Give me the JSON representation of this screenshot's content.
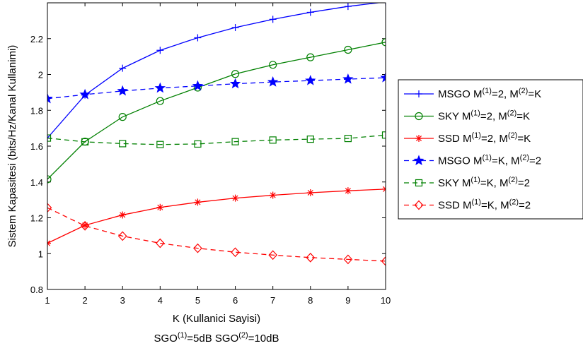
{
  "chart_data": {
    "type": "line",
    "xlabel": "K (Kullanici Sayisi)",
    "subtitle": {
      "parts": [
        {
          "text": "SGO"
        },
        {
          "text": "(1)",
          "sup": true
        },
        {
          "text": "=5dB SGO"
        },
        {
          "text": "(2)",
          "sup": true
        },
        {
          "text": "=10dB"
        }
      ]
    },
    "ylabel": "Sistem Kapasitesi (bits/Hz/Kanal Kullanimi)",
    "x": [
      1,
      2,
      3,
      4,
      5,
      6,
      7,
      8,
      9,
      10
    ],
    "xlim": [
      1,
      10
    ],
    "ylim": [
      0.8,
      2.4
    ],
    "xticks": [
      1,
      2,
      3,
      4,
      5,
      6,
      7,
      8,
      9,
      10
    ],
    "yticks": [
      0.8,
      1,
      1.2,
      1.4,
      1.6,
      1.8,
      2,
      2.2
    ],
    "ytick_labels": [
      "0.8",
      "1",
      "1.2",
      "1.4",
      "1.6",
      "1.8",
      "2",
      "2.2"
    ],
    "grid": false,
    "legend_position": "outside-right",
    "series": [
      {
        "name": "MSGO M(1)=2, M(2)=K",
        "legend_parts": [
          {
            "text": "MSGO M"
          },
          {
            "text": "(1)",
            "sup": true
          },
          {
            "text": "=2, M"
          },
          {
            "text": "(2)",
            "sup": true
          },
          {
            "text": "=K"
          }
        ],
        "color": "#0000FF",
        "linestyle": "solid",
        "marker": "plus",
        "values": [
          1.645,
          1.885,
          2.035,
          2.135,
          2.205,
          2.262,
          2.308,
          2.347,
          2.38,
          2.405
        ]
      },
      {
        "name": "SKY M(1)=2, M(2)=K",
        "legend_parts": [
          {
            "text": "SKY M"
          },
          {
            "text": "(1)",
            "sup": true
          },
          {
            "text": "=2, M"
          },
          {
            "text": "(2)",
            "sup": true
          },
          {
            "text": "=K"
          }
        ],
        "color": "#008000",
        "linestyle": "solid",
        "marker": "circle",
        "values": [
          1.415,
          1.625,
          1.763,
          1.852,
          1.927,
          2.003,
          2.054,
          2.096,
          2.138,
          2.18
        ]
      },
      {
        "name": "SSD M(1)=2, M(2)=K",
        "legend_parts": [
          {
            "text": "SSD M"
          },
          {
            "text": "(1)",
            "sup": true
          },
          {
            "text": "=2, M"
          },
          {
            "text": "(2)",
            "sup": true
          },
          {
            "text": "=K"
          }
        ],
        "color": "#FF0000",
        "linestyle": "solid",
        "marker": "asterisk",
        "values": [
          1.058,
          1.158,
          1.216,
          1.258,
          1.287,
          1.31,
          1.326,
          1.34,
          1.351,
          1.36
        ]
      },
      {
        "name": "MSGO M(1)=K, M(2)=2",
        "legend_parts": [
          {
            "text": "MSGO M"
          },
          {
            "text": "(1)",
            "sup": true
          },
          {
            "text": "=K, M"
          },
          {
            "text": "(2)",
            "sup": true
          },
          {
            "text": "=2"
          }
        ],
        "color": "#0000FF",
        "linestyle": "dashed",
        "marker": "star",
        "values": [
          1.865,
          1.888,
          1.908,
          1.924,
          1.936,
          1.948,
          1.958,
          1.966,
          1.974,
          1.982
        ]
      },
      {
        "name": "SKY M(1)=K, M(2)=2",
        "legend_parts": [
          {
            "text": "SKY M"
          },
          {
            "text": "(1)",
            "sup": true
          },
          {
            "text": "=K, M"
          },
          {
            "text": "(2)",
            "sup": true
          },
          {
            "text": "=2"
          }
        ],
        "color": "#008000",
        "linestyle": "dashed",
        "marker": "square",
        "values": [
          1.645,
          1.624,
          1.614,
          1.609,
          1.612,
          1.625,
          1.634,
          1.639,
          1.643,
          1.662
        ]
      },
      {
        "name": "SSD M(1)=K, M(2)=2",
        "legend_parts": [
          {
            "text": "SSD M"
          },
          {
            "text": "(1)",
            "sup": true
          },
          {
            "text": "=K, M"
          },
          {
            "text": "(2)",
            "sup": true
          },
          {
            "text": "=2"
          }
        ],
        "color": "#FF0000",
        "linestyle": "dashed",
        "marker": "diamond",
        "values": [
          1.256,
          1.155,
          1.098,
          1.058,
          1.03,
          1.008,
          0.992,
          0.978,
          0.968,
          0.958
        ]
      }
    ]
  }
}
